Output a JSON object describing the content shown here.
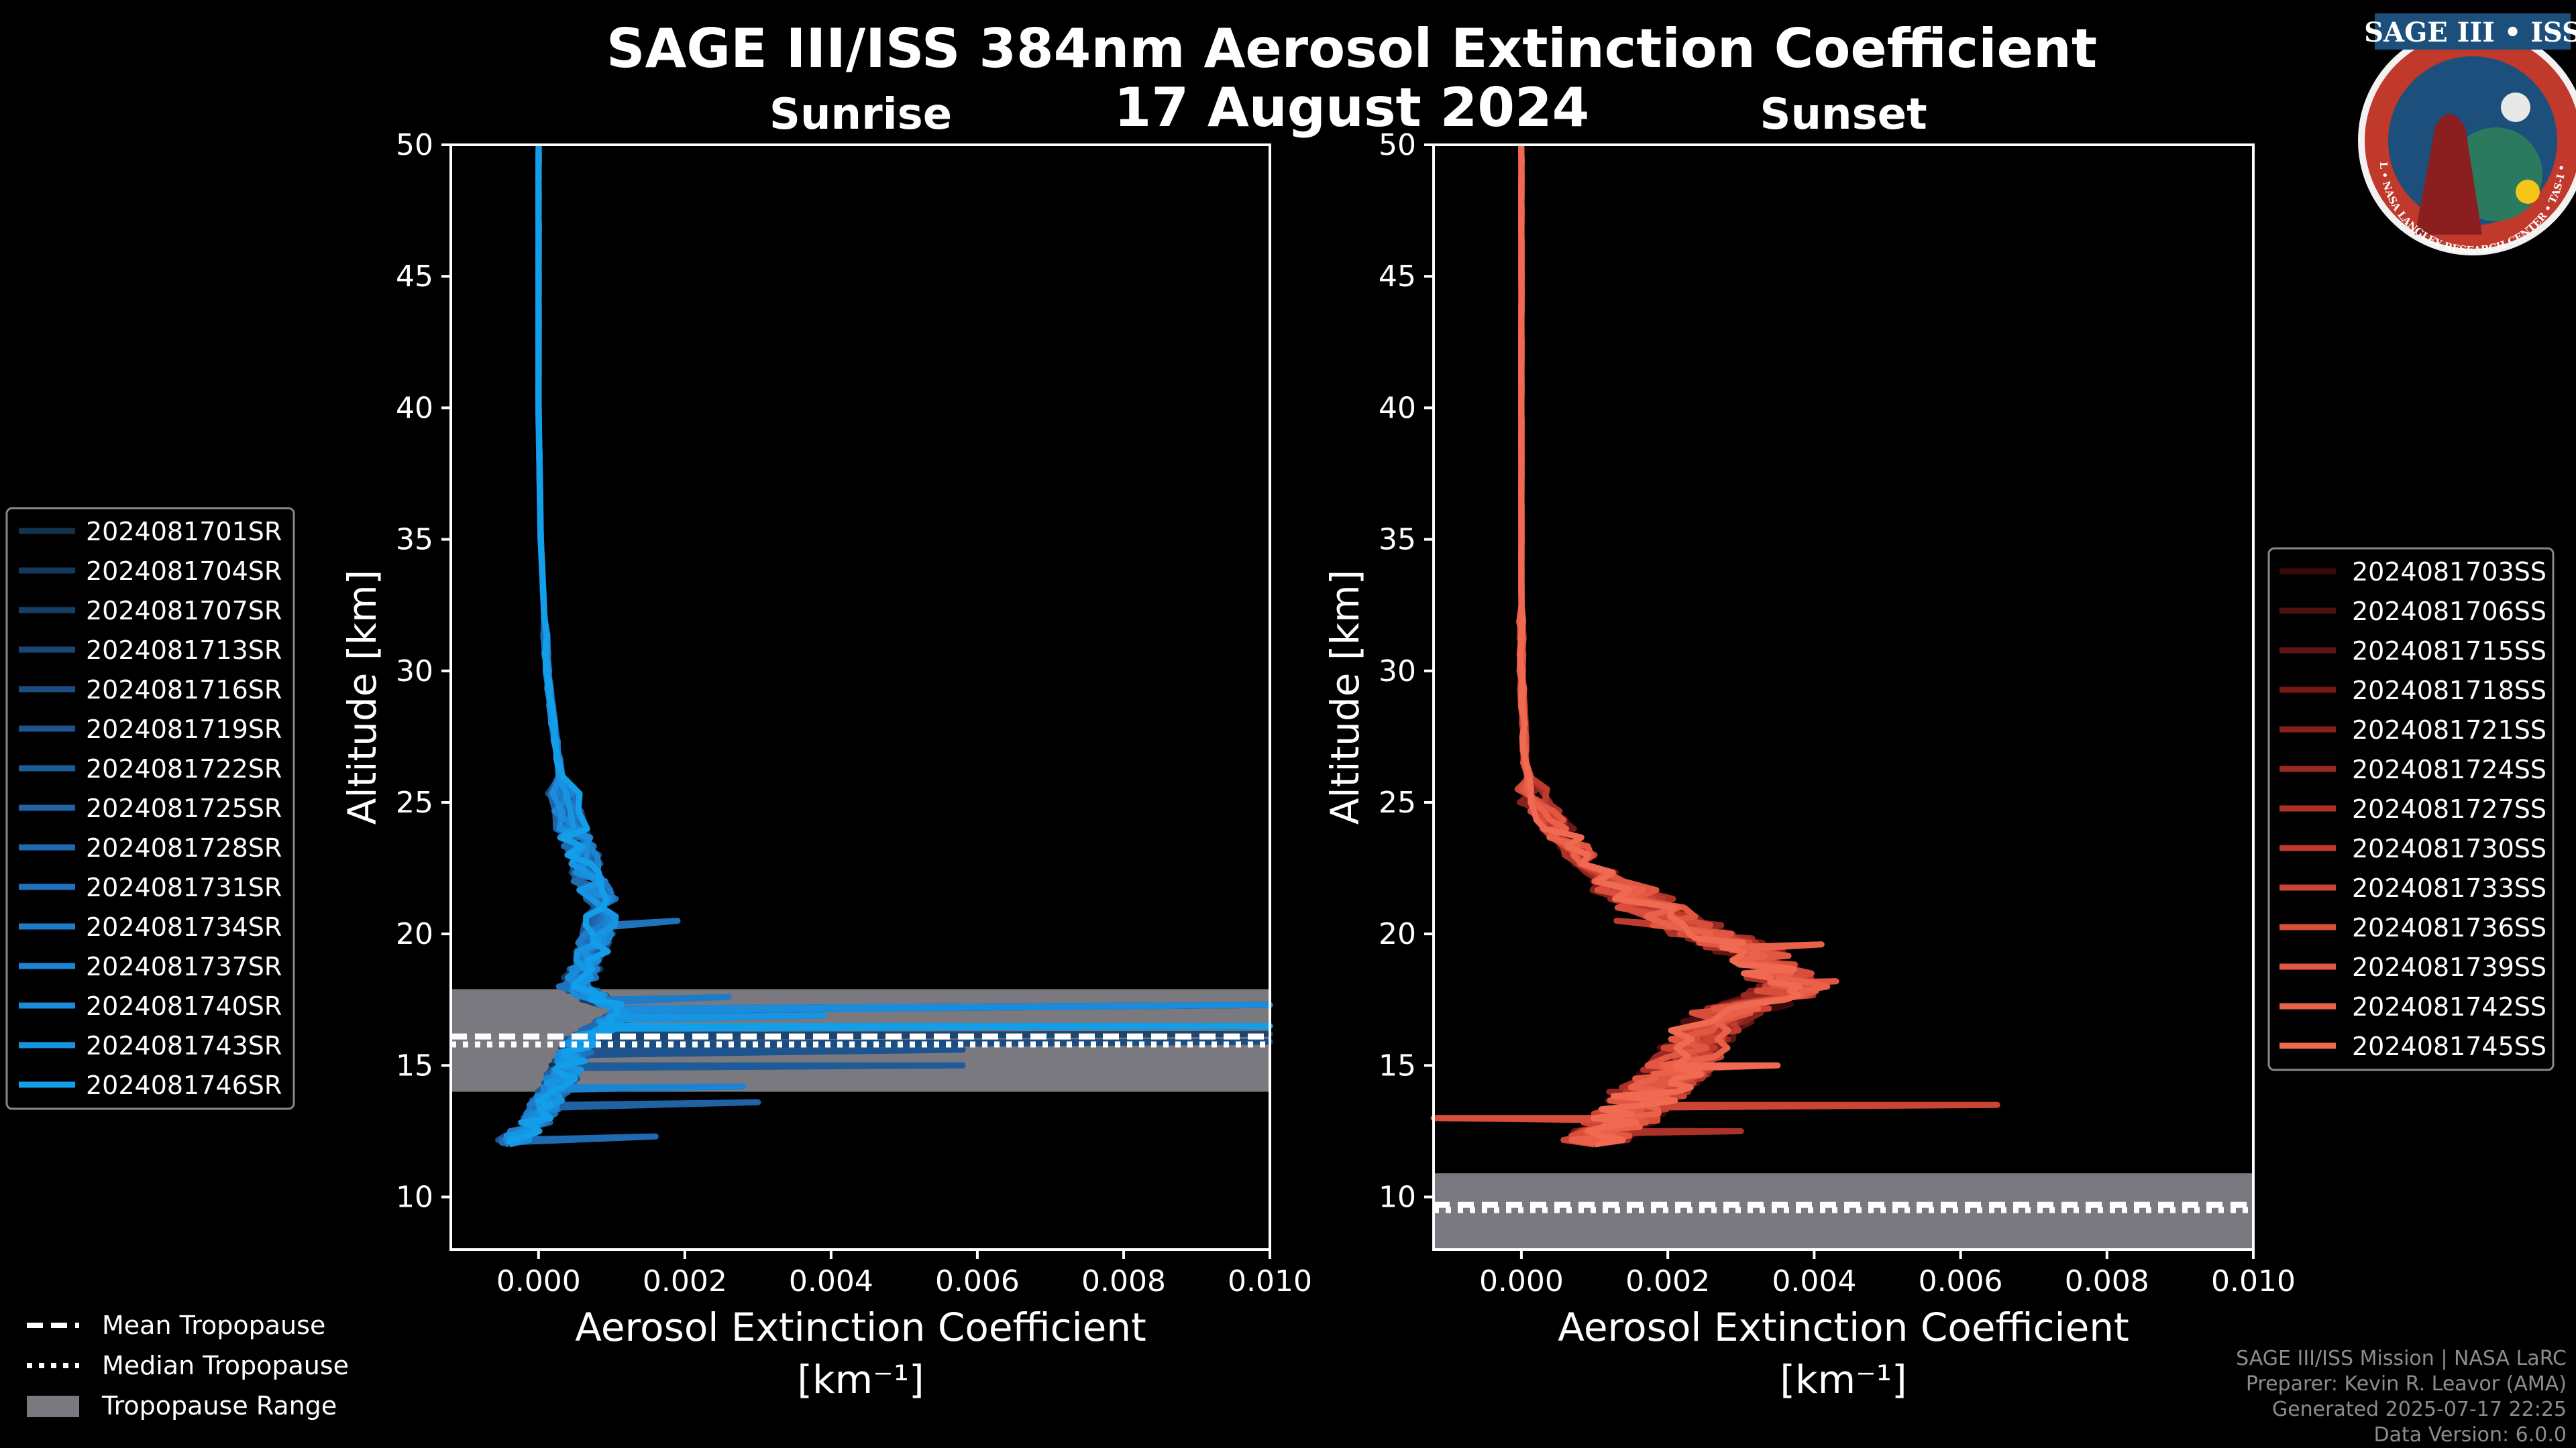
{
  "figure": {
    "title": "SAGE III/ISS 384nm Aerosol Extinction Coefficient",
    "date": "17 August 2024"
  },
  "logo": {
    "top_text": "SAGE III • ISS",
    "ring_text": "BALL • NASA LANGLEY RESEARCH CENTER • TAS-I • ESA",
    "colors": {
      "ring": "#c0392b",
      "inner": "#1c4f7c",
      "accent": "#f5c518"
    }
  },
  "footer": {
    "line1": "SAGE III/ISS Mission | NASA LaRC",
    "line2": "Preparer: Kevin R. Leavor (AMA)",
    "line3": "Generated 2025-07-17 22:25",
    "line4": "Data Version: 6.0.0"
  },
  "bottom_legend": {
    "mean": "Mean Tropopause",
    "median": "Median Tropopause",
    "range": "Tropopause Range"
  },
  "chart_data": [
    {
      "type": "line",
      "panel": "sunrise",
      "title": "Sunrise",
      "xlabel": "Aerosol Extinction Coefficient",
      "xunit": "[km⁻¹]",
      "ylabel": "Altitude [km]",
      "xlim": [
        -0.0012,
        0.01
      ],
      "ylim": [
        8,
        50
      ],
      "xticks": [
        "0.000",
        "0.002",
        "0.004",
        "0.006",
        "0.008",
        "0.010"
      ],
      "xtick_values": [
        0,
        0.002,
        0.004,
        0.006,
        0.008,
        0.01
      ],
      "yticks": [
        10,
        15,
        20,
        25,
        30,
        35,
        40,
        45,
        50
      ],
      "tropopause": {
        "mean": 16.1,
        "median": 15.8,
        "range": [
          14.0,
          17.9
        ]
      },
      "series_names": [
        "2024081701SR",
        "2024081704SR",
        "2024081707SR",
        "2024081713SR",
        "2024081716SR",
        "2024081719SR",
        "2024081722SR",
        "2024081725SR",
        "2024081728SR",
        "2024081731SR",
        "2024081734SR",
        "2024081737SR",
        "2024081740SR",
        "2024081743SR",
        "2024081746SR"
      ],
      "series_colors": [
        "#12334d",
        "#15395a",
        "#173f66",
        "#1a4673",
        "#1c4d80",
        "#1d548d",
        "#1e5c99",
        "#1f63a5",
        "#1f6bb1",
        "#1f73bd",
        "#1e7bc8",
        "#1c84d2",
        "#1a8cdb",
        "#1795e3",
        "#139eea"
      ],
      "profile": {
        "altitudes": [
          50,
          45,
          40,
          35,
          32,
          30,
          28,
          26,
          24,
          23,
          22,
          21,
          20,
          19,
          18,
          17.5,
          17,
          16.5,
          16,
          15.5,
          15,
          14.5,
          14,
          13.5,
          13,
          12.5,
          12
        ],
        "values": [
          0,
          0,
          0,
          3e-05,
          8e-05,
          0.00012,
          0.0002,
          0.0003,
          0.00045,
          0.0006,
          0.0007,
          0.0009,
          0.0008,
          0.0007,
          0.0005,
          0.0008,
          0.0012,
          0.0009,
          0.0006,
          0.0005,
          0.0004,
          0.0003,
          0.0002,
          0.0001,
          0,
          -0.0002,
          -0.0004
        ],
        "spikes": [
          {
            "alt": 17.3,
            "x": 0.01
          },
          {
            "alt": 16.9,
            "x": 0.0039
          },
          {
            "alt": 16.5,
            "x": 0.01
          },
          {
            "alt": 16.2,
            "x": 0.01
          },
          {
            "alt": 15.9,
            "x": 0.01
          },
          {
            "alt": 15.6,
            "x": 0.0058
          },
          {
            "alt": 15.0,
            "x": 0.0058
          },
          {
            "alt": 13.6,
            "x": 0.003
          },
          {
            "alt": 12.3,
            "x": 0.0016
          },
          {
            "alt": 20.5,
            "x": 0.0019
          },
          {
            "alt": 17.6,
            "x": 0.0026
          },
          {
            "alt": 14.2,
            "x": 0.0028
          }
        ]
      }
    },
    {
      "type": "line",
      "panel": "sunset",
      "title": "Sunset",
      "xlabel": "Aerosol Extinction Coefficient",
      "xunit": "[km⁻¹]",
      "ylabel": "Altitude [km]",
      "xlim": [
        -0.0012,
        0.01
      ],
      "ylim": [
        8,
        50
      ],
      "xticks": [
        "0.000",
        "0.002",
        "0.004",
        "0.006",
        "0.008",
        "0.010"
      ],
      "xtick_values": [
        0,
        0.002,
        0.004,
        0.006,
        0.008,
        0.01
      ],
      "yticks": [
        10,
        15,
        20,
        25,
        30,
        35,
        40,
        45,
        50
      ],
      "tropopause": {
        "mean": 9.7,
        "median": 9.5,
        "range": [
          8,
          10.9
        ]
      },
      "series_names": [
        "2024081703SS",
        "2024081706SS",
        "2024081715SS",
        "2024081718SS",
        "2024081721SS",
        "2024081724SS",
        "2024081727SS",
        "2024081730SS",
        "2024081733SS",
        "2024081736SS",
        "2024081739SS",
        "2024081742SS",
        "2024081745SS"
      ],
      "series_colors": [
        "#3a0a0a",
        "#4d0f0f",
        "#601414",
        "#731a17",
        "#86211c",
        "#992922",
        "#ac3228",
        "#bd3b2e",
        "#cc4434",
        "#d84e3b",
        "#e25742",
        "#ea6049",
        "#f06a52"
      ],
      "profile": {
        "altitudes": [
          50,
          45,
          40,
          35,
          30,
          28,
          26.5,
          25,
          24,
          23,
          22,
          21,
          20,
          19.5,
          19,
          18.5,
          18,
          17.5,
          17,
          16,
          15,
          14.5,
          14,
          13.5,
          13,
          12.5,
          12
        ],
        "values": [
          0,
          0,
          0,
          0,
          0,
          3e-05,
          5e-05,
          0.0002,
          0.0005,
          0.0008,
          0.0012,
          0.0018,
          0.0025,
          0.003,
          0.0033,
          0.0035,
          0.0037,
          0.0034,
          0.0028,
          0.0024,
          0.0022,
          0.002,
          0.0018,
          0.0016,
          0.0014,
          0.0012,
          0.001
        ],
        "spikes": [
          {
            "alt": 13.5,
            "x": 0.0065
          },
          {
            "alt": 13.0,
            "x": -0.0012
          },
          {
            "alt": 18.2,
            "x": 0.0043
          },
          {
            "alt": 19.6,
            "x": 0.0041
          },
          {
            "alt": 15.0,
            "x": 0.0035
          },
          {
            "alt": 14.0,
            "x": 0.0012
          },
          {
            "alt": 12.5,
            "x": 0.003
          },
          {
            "alt": 20.5,
            "x": 0.0013
          }
        ]
      }
    }
  ]
}
